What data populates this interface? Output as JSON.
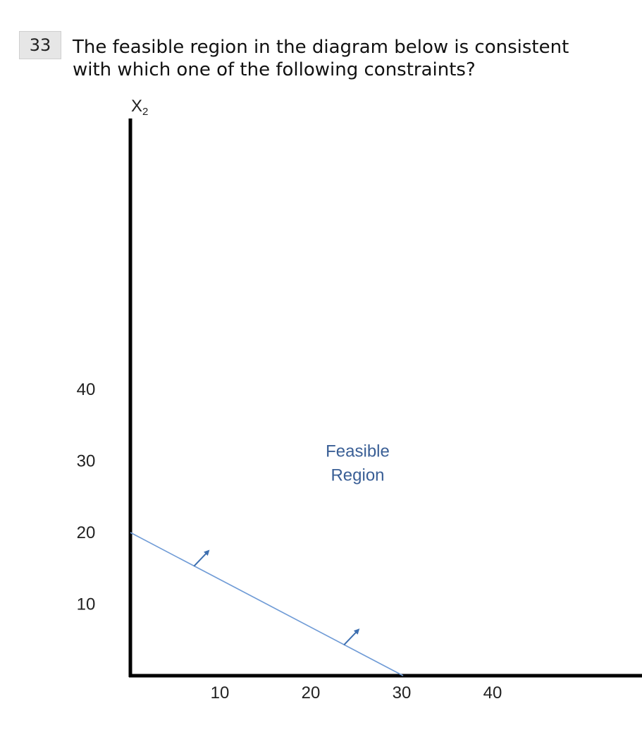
{
  "question": {
    "number": "33",
    "text_line1": "The feasible region in the diagram below is consistent",
    "text_line2": "with which one of the following constraints?"
  },
  "chart_data": {
    "type": "line",
    "ylabel": "X",
    "ylabel_subscript": "2",
    "xlabel": "",
    "x_ticks": [
      10,
      20,
      30,
      40
    ],
    "y_ticks": [
      40,
      30,
      20,
      10
    ],
    "constraint_line": {
      "x": [
        0,
        30
      ],
      "y": [
        20,
        0
      ]
    },
    "feasible_direction_arrows": [
      {
        "x": 7,
        "y": 15.3,
        "dx": 1.5,
        "dy": 2.0
      },
      {
        "x": 23.5,
        "y": 4.3,
        "dx": 1.5,
        "dy": 2.0
      }
    ],
    "region_label_line1": "Feasible",
    "region_label_line2": "Region",
    "region_label_position": {
      "x": 25,
      "y": 29
    },
    "line_color": "#6f9bd6",
    "arrow_color": "#3d6fb0",
    "label_color": "#3a5f96",
    "axis_color": "#000000"
  }
}
